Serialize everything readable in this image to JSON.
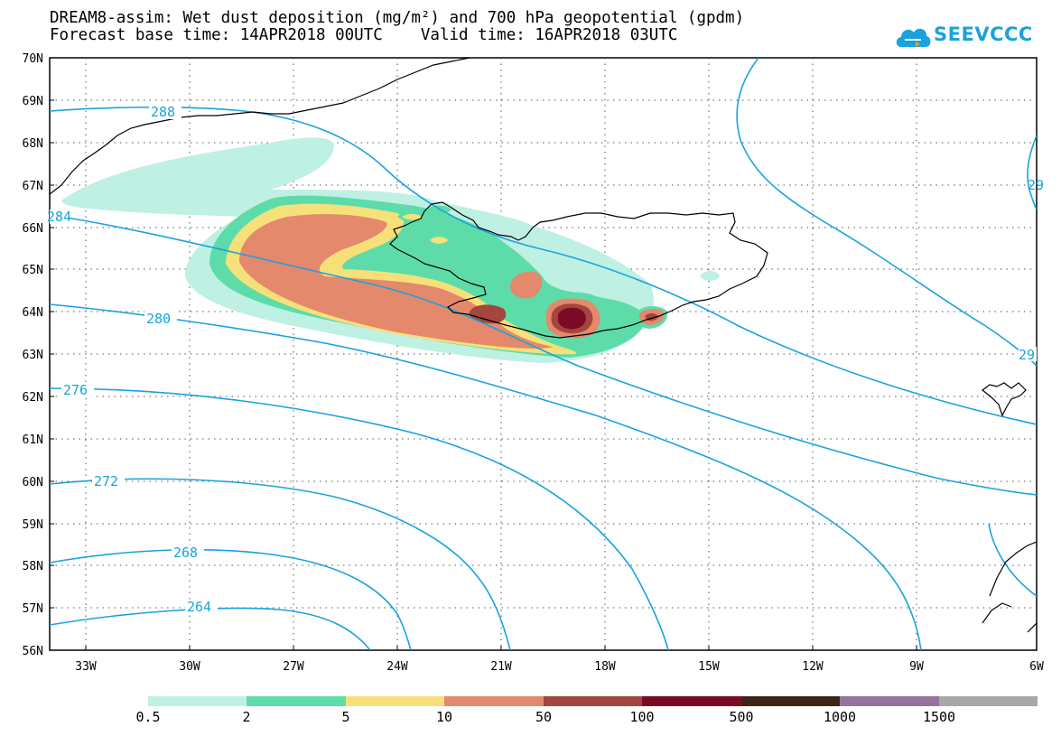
{
  "title": {
    "line1": "DREAM8-assim: Wet dust deposition (mg/m²) and 700 hPa geopotential (gpdm)",
    "line2": "Forecast base time: 14APR2018 00UTC    Valid time: 16APR2018 03UTC"
  },
  "logo": {
    "text": "SEEVCCC",
    "icon": "cloud-icon",
    "color": "#1aa2de"
  },
  "map": {
    "lat_labels": [
      "70N",
      "69N",
      "68N",
      "67N",
      "66N",
      "65N",
      "64N",
      "63N",
      "62N",
      "61N",
      "60N",
      "59N",
      "58N",
      "57N",
      "56N"
    ],
    "lon_labels": [
      "33W",
      "30W",
      "27W",
      "24W",
      "21W",
      "18W",
      "15W",
      "12W",
      "9W",
      "6W"
    ],
    "lat_range": [
      56,
      70
    ],
    "lon_range": [
      -34.5,
      -6
    ],
    "contour_color": "#1aa2de",
    "contour_labels": [
      "288",
      "284",
      "280",
      "276",
      "272",
      "268",
      "264",
      "29",
      "29"
    ],
    "features": [
      "Iceland",
      "Greenland coast",
      "Faroe Islands",
      "Scotland coast"
    ]
  },
  "legend": {
    "labels": [
      "0.5",
      "2",
      "5",
      "10",
      "50",
      "100",
      "500",
      "1000",
      "1500"
    ],
    "colors": [
      "#bff0e4",
      "#5ddca9",
      "#f7e07a",
      "#e4896c",
      "#a4463f",
      "#7b0b25",
      "#3c2617",
      "#95739c",
      "#a8a8a8"
    ]
  }
}
